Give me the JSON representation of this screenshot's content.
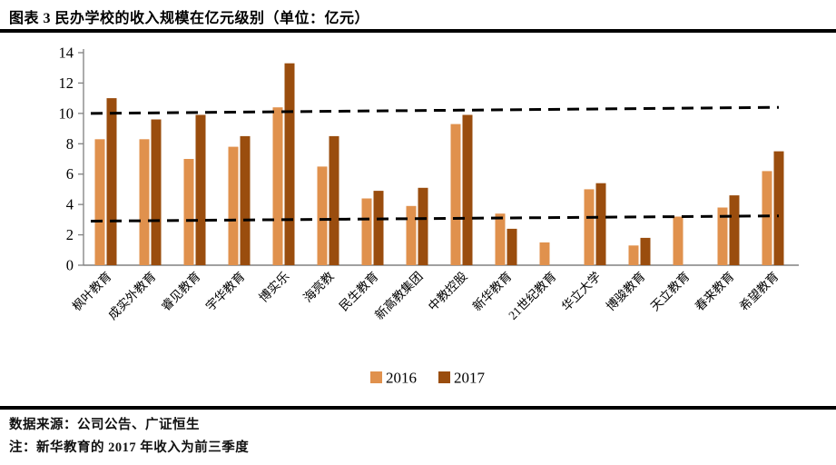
{
  "title": "图表 3 民办学校的收入规模在亿元级别（单位：亿元）",
  "footer": {
    "source": "数据来源：公司公告、广证恒生",
    "note": "注：新华教育的 2017 年收入为前三季度"
  },
  "colors": {
    "series_2016": "#E0914D",
    "series_2017": "#9A4D0E",
    "axis": "#808080",
    "dashed_line": "#000000",
    "text": "#000000"
  },
  "chart_data": {
    "type": "bar",
    "title": "图表 3 民办学校的收入规模在亿元级别（单位：亿元）",
    "xlabel": "",
    "ylabel": "",
    "ylim": [
      0,
      14
    ],
    "yticks": [
      0,
      2,
      4,
      6,
      8,
      10,
      12,
      14
    ],
    "grid": false,
    "legend_position": "bottom",
    "categories": [
      "枫叶教育",
      "成实外教育",
      "睿见教育",
      "宇华教育",
      "博实乐",
      "海亮教",
      "民生教育",
      "新高教集团",
      "中教控股",
      "新华教育",
      "21世纪教育",
      "华立大学",
      "博骏教育",
      "天立教育",
      "春来教育",
      "希望教育"
    ],
    "series": [
      {
        "name": "2016",
        "color": "#E0914D",
        "values": [
          8.3,
          8.3,
          7.0,
          7.8,
          10.4,
          6.5,
          4.4,
          3.9,
          9.3,
          3.4,
          1.5,
          5.0,
          1.3,
          3.2,
          3.8,
          6.2
        ]
      },
      {
        "name": "2017",
        "color": "#9A4D0E",
        "values": [
          11.0,
          9.6,
          9.9,
          8.5,
          13.3,
          8.5,
          4.9,
          5.1,
          9.9,
          2.4,
          null,
          5.4,
          1.8,
          null,
          4.6,
          7.5
        ]
      }
    ],
    "dashed_reference_lines": [
      {
        "y_start": 10.0,
        "y_end": 10.4
      },
      {
        "y_start": 2.9,
        "y_end": 3.25
      }
    ]
  }
}
